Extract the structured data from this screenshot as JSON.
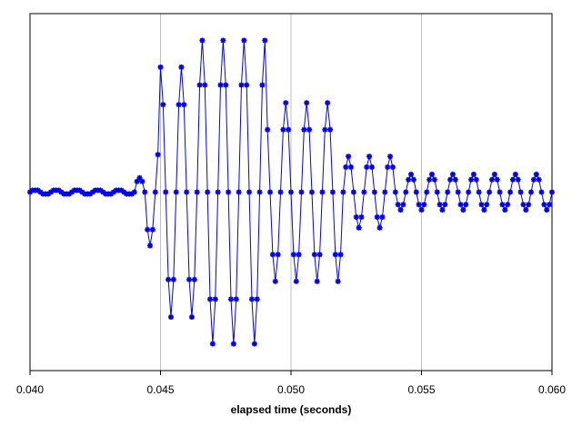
{
  "chart_data": {
    "type": "line",
    "x_label": "elapsed time (seconds)",
    "color": "#0000ff",
    "grid": true,
    "marker": "star",
    "xlim": [
      0.04,
      0.06
    ],
    "ylim": [
      -1,
      1
    ],
    "xticks": [
      {
        "value": 0.04,
        "label": "0.040"
      },
      {
        "value": 0.045,
        "label": "0.045"
      },
      {
        "value": 0.05,
        "label": "0.050"
      },
      {
        "value": 0.055,
        "label": "0.055"
      },
      {
        "value": 0.06,
        "label": "0.060"
      }
    ],
    "x": [
      0.04,
      0.0401,
      0.0402,
      0.0403,
      0.0404,
      0.0405,
      0.0406,
      0.0407,
      0.0408,
      0.0409,
      0.041,
      0.0411,
      0.0412,
      0.0413,
      0.0414,
      0.0415,
      0.0416,
      0.0417,
      0.0418,
      0.0419,
      0.042,
      0.0421,
      0.0422,
      0.0423,
      0.0424,
      0.0425,
      0.0426,
      0.0427,
      0.0428,
      0.0429,
      0.043,
      0.0431,
      0.0432,
      0.0433,
      0.0434,
      0.0435,
      0.0436,
      0.0437,
      0.0438,
      0.0439,
      0.044,
      0.0441,
      0.0442,
      0.0443,
      0.0444,
      0.0445,
      0.0446,
      0.0447,
      0.0448,
      0.0449,
      0.045,
      0.0451,
      0.0452,
      0.0453,
      0.0454,
      0.0455,
      0.0456,
      0.0457,
      0.0458,
      0.0459,
      0.046,
      0.0461,
      0.0462,
      0.0463,
      0.0464,
      0.0465,
      0.0466,
      0.0467,
      0.0468,
      0.0469,
      0.047,
      0.0471,
      0.0472,
      0.0473,
      0.0474,
      0.0475,
      0.0476,
      0.0477,
      0.0478,
      0.0479,
      0.048,
      0.0481,
      0.0482,
      0.0483,
      0.0484,
      0.0485,
      0.0486,
      0.0487,
      0.0488,
      0.0489,
      0.049,
      0.0491,
      0.0492,
      0.0493,
      0.0494,
      0.0495,
      0.0496,
      0.0497,
      0.0498,
      0.0499,
      0.05,
      0.0501,
      0.0502,
      0.0503,
      0.0504,
      0.0505,
      0.0506,
      0.0507,
      0.0508,
      0.0509,
      0.051,
      0.0511,
      0.0512,
      0.0513,
      0.0514,
      0.0515,
      0.0516,
      0.0517,
      0.0518,
      0.0519,
      0.052,
      0.0521,
      0.0522,
      0.0523,
      0.0524,
      0.0525,
      0.0526,
      0.0527,
      0.0528,
      0.0529,
      0.053,
      0.0531,
      0.0532,
      0.0533,
      0.0534,
      0.0535,
      0.0536,
      0.0537,
      0.0538,
      0.0539,
      0.054,
      0.0541,
      0.0542,
      0.0543,
      0.0544,
      0.0545,
      0.0546,
      0.0547,
      0.0548,
      0.0549,
      0.055,
      0.0551,
      0.0552,
      0.0553,
      0.0554,
      0.0555,
      0.0556,
      0.0557,
      0.0558,
      0.0559,
      0.056,
      0.0561,
      0.0562,
      0.0563,
      0.0564,
      0.0565,
      0.0566,
      0.0567,
      0.0568,
      0.0569,
      0.057,
      0.0571,
      0.0572,
      0.0573,
      0.0574,
      0.0575,
      0.0576,
      0.0577,
      0.0578,
      0.0579,
      0.058,
      0.0581,
      0.0582,
      0.0583,
      0.0584,
      0.0585,
      0.0586,
      0.0587,
      0.0588,
      0.0589,
      0.059,
      0.0591,
      0.0592,
      0.0593,
      0.0594,
      0.0595,
      0.0596,
      0.0597,
      0.0598,
      0.0599,
      0.06
    ],
    "values": [
      0,
      0.01,
      0.01,
      0.01,
      0,
      -0.01,
      -0.01,
      -0.01,
      0,
      0.01,
      0.01,
      0.01,
      0,
      -0.01,
      -0.01,
      -0.01,
      0,
      0.01,
      0.01,
      0.01,
      0,
      -0.01,
      -0.01,
      -0.01,
      0,
      0.01,
      0.01,
      0.01,
      0,
      -0.01,
      -0.01,
      -0.01,
      0,
      0.01,
      0.01,
      0.01,
      0,
      -0.01,
      -0.01,
      -0.01,
      0,
      0.06,
      0.08,
      0.06,
      0,
      -0.21,
      -0.3,
      -0.21,
      0,
      0.21,
      0.7,
      0.49,
      0,
      -0.49,
      -0.7,
      -0.49,
      0,
      0.49,
      0.7,
      0.49,
      0,
      -0.49,
      -0.7,
      -0.49,
      0,
      0.6,
      0.85,
      0.6,
      0,
      -0.6,
      -0.85,
      -0.6,
      0,
      0.6,
      0.85,
      0.6,
      0,
      -0.6,
      -0.85,
      -0.6,
      0,
      0.6,
      0.85,
      0.6,
      0,
      -0.6,
      -0.85,
      -0.6,
      0,
      0.6,
      0.85,
      0.35,
      0,
      -0.35,
      -0.5,
      -0.35,
      0,
      0.35,
      0.5,
      0.35,
      0,
      -0.35,
      -0.5,
      -0.35,
      0,
      0.35,
      0.5,
      0.35,
      0,
      -0.35,
      -0.5,
      -0.35,
      0,
      0.35,
      0.5,
      0.35,
      0,
      -0.35,
      -0.5,
      -0.35,
      0,
      0.14,
      0.2,
      0.14,
      0,
      -0.14,
      -0.2,
      -0.14,
      0,
      0.14,
      0.2,
      0.14,
      0,
      -0.14,
      -0.2,
      -0.14,
      0,
      0.14,
      0.2,
      0.14,
      0,
      -0.07,
      -0.1,
      -0.07,
      0,
      0.07,
      0.1,
      0.07,
      0,
      -0.07,
      -0.1,
      -0.07,
      0,
      0.07,
      0.1,
      0.07,
      0,
      -0.07,
      -0.1,
      -0.07,
      0,
      0.07,
      0.1,
      0.07,
      0,
      -0.07,
      -0.1,
      -0.07,
      0,
      0.07,
      0.1,
      0.07,
      0,
      -0.07,
      -0.1,
      -0.07,
      0,
      0.07,
      0.1,
      0.07,
      0,
      -0.07,
      -0.1,
      -0.07,
      0,
      0.07,
      0.1,
      0.07,
      0,
      -0.07,
      -0.1,
      -0.07,
      0,
      0.07,
      0.1,
      0.07,
      0,
      -0.07,
      -0.1,
      -0.07,
      0
    ]
  }
}
